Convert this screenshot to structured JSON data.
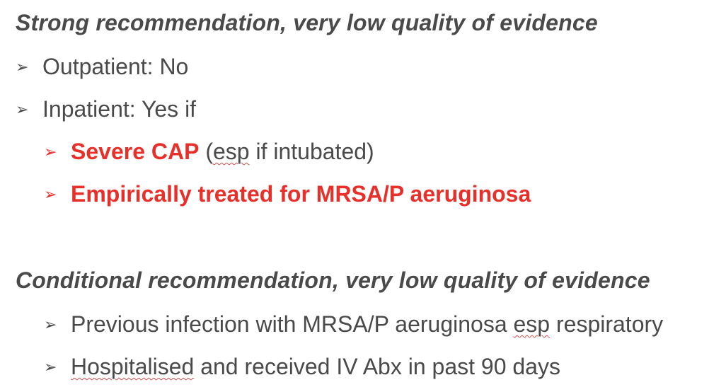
{
  "section1": {
    "heading": "Strong recommendation, very low quality of evidence",
    "bullets": {
      "outpatient": "Outpatient: No",
      "inpatient": "Inpatient: Yes if",
      "severe_cap_bold": "Severe CAP",
      "severe_cap_paren_open": " (",
      "severe_cap_esp": "esp",
      "severe_cap_rest": " if intubated)",
      "empiric": "Empirically treated for MRSA/P aeruginosa"
    }
  },
  "section2": {
    "heading": "Conditional recommendation, very low quality of evidence",
    "bullets": {
      "previous_pre": "Previous infection with MRSA/P aeruginosa ",
      "previous_esp": "esp",
      "previous_post": " respiratory",
      "hosp_word": "Hospitalised",
      "hosp_rest": " and received IV Abx in past 90 days"
    }
  },
  "glyphs": {
    "arrow": "➢"
  },
  "colors": {
    "text": "#4a4a4a",
    "accent_red": "#e8302a"
  }
}
